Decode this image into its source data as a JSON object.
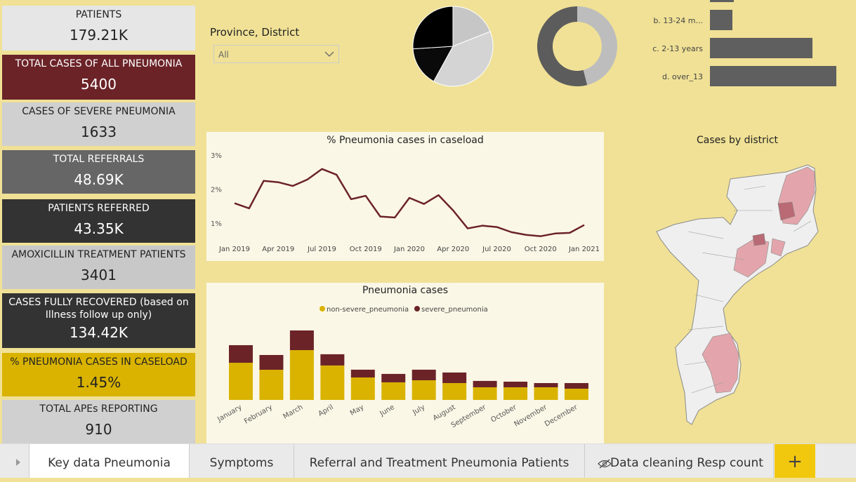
{
  "kpis": [
    {
      "label": "PATIENTS",
      "value": "179.21K"
    },
    {
      "label": "TOTAL CASES OF ALL PNEUMONIA",
      "value": "5400"
    },
    {
      "label": "CASES OF SEVERE PNEUMONIA",
      "value": "1633"
    },
    {
      "label": "TOTAL REFERRALS",
      "value": "48.69K"
    },
    {
      "label": "PATIENTS REFERRED",
      "value": "43.35K"
    },
    {
      "label": "AMOXICILLIN TREATMENT PATIENTS",
      "value": "3401"
    },
    {
      "label": "CASES FULLY RECOVERED (based on Illness follow up only)",
      "value": "134.42K"
    },
    {
      "label": "% PNEUMONIA CASES IN CASELOAD",
      "value": "1.45%"
    },
    {
      "label": "TOTAL APEs REPORTING",
      "value": "910"
    }
  ],
  "filter": {
    "label": "Province, District",
    "selected": "All"
  },
  "chart_data": [
    {
      "type": "pie",
      "values": [
        19,
        39,
        16,
        26
      ],
      "colors": [
        "#c6c6c6",
        "#d4d4d4",
        "#0a0a0a",
        "#000000"
      ]
    },
    {
      "type": "donut",
      "values": [
        46,
        54
      ],
      "colors": [
        "#bdbdbd",
        "#5c5c5c"
      ]
    },
    {
      "type": "hbar",
      "categories": [
        null,
        "b. 13-24 m...",
        "c. 2-13 years",
        "d. over_13"
      ],
      "values": [
        34,
        32,
        146,
        180
      ],
      "color": "#5f5f5f"
    },
    {
      "type": "line",
      "title": "% Pneumonia cases in caseload",
      "categories": [
        "Jan 2019",
        null,
        null,
        "Apr 2019",
        null,
        null,
        "Jul 2019",
        null,
        null,
        "Oct 2019",
        null,
        null,
        "Jan 2020",
        null,
        null,
        "Apr 2020",
        null,
        null,
        "Jul 2020",
        null,
        null,
        "Oct 2020",
        null,
        null,
        "Jan 2021"
      ],
      "values": [
        1.58,
        1.43,
        2.24,
        2.2,
        2.09,
        2.28,
        2.59,
        2.42,
        1.7,
        1.8,
        1.19,
        1.16,
        1.74,
        1.56,
        1.82,
        1.37,
        0.84,
        0.92,
        0.88,
        0.73,
        0.65,
        0.61,
        0.69,
        0.71,
        0.94
      ],
      "color": "#6b2328",
      "ylim": [
        0.5,
        3
      ],
      "yticks": [
        {
          "value": 3,
          "label": "3%"
        },
        {
          "value": 2,
          "label": "2%"
        },
        {
          "value": 1,
          "label": "1%"
        }
      ],
      "grid": false
    },
    {
      "type": "stacked_bar",
      "title": "Pneumonia cases",
      "categories": [
        "January",
        "February",
        "March",
        "April",
        "May",
        "June",
        "July",
        "August",
        "September",
        "October",
        "November",
        "December"
      ],
      "series": [
        {
          "name": "non-severe_pneumonia",
          "color": "#d9b300",
          "values": [
            503,
            408,
            674,
            466,
            304,
            238,
            266,
            228,
            171,
            171,
            171,
            152
          ]
        },
        {
          "name": "severe_pneumonia",
          "color": "#6b2328",
          "values": [
            238,
            200,
            266,
            152,
            105,
            114,
            143,
            143,
            86,
            76,
            57,
            76
          ]
        }
      ]
    }
  ],
  "map": {
    "title": "Cases by district"
  },
  "tabs": [
    "Key data Pneumonia",
    "Symptoms",
    "Referral and Treatment Pneumonia Patients",
    "Data cleaning Resp count"
  ]
}
